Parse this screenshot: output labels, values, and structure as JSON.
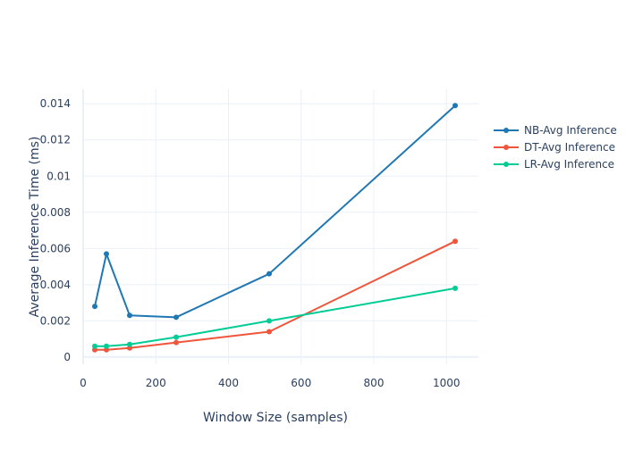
{
  "chart_data": {
    "type": "line",
    "xlabel": "Window Size (samples)",
    "ylabel": "Average Inference Time (ms)",
    "xlim": [
      0,
      1088
    ],
    "ylim": [
      -0.0004,
      0.0148
    ],
    "x_ticks": [
      0,
      200,
      400,
      600,
      800,
      1000
    ],
    "y_ticks": [
      0,
      0.002,
      0.004,
      0.006,
      0.008,
      0.01,
      0.012,
      0.014
    ],
    "x_tick_labels": [
      "0",
      "200",
      "400",
      "600",
      "800",
      "1000"
    ],
    "y_tick_labels": [
      "0",
      "0.002",
      "0.004",
      "0.006",
      "0.008",
      "0.01",
      "0.012",
      "0.014"
    ],
    "grid": true,
    "legend_position": "right",
    "x": [
      32,
      64,
      128,
      256,
      512,
      1024
    ],
    "series": [
      {
        "name": "NB-Avg Inference",
        "color": "#1f77b4",
        "values": [
          0.0028,
          0.0057,
          0.0023,
          0.0022,
          0.0046,
          0.0139
        ]
      },
      {
        "name": "DT-Avg Inference",
        "color": "#ef553b",
        "values": [
          0.0004,
          0.0004,
          0.0005,
          0.0008,
          0.0014,
          0.0064
        ]
      },
      {
        "name": "LR-Avg Inference",
        "color": "#00cc96",
        "values": [
          0.0006,
          0.0006,
          0.0007,
          0.0011,
          0.002,
          0.0038
        ]
      }
    ]
  }
}
